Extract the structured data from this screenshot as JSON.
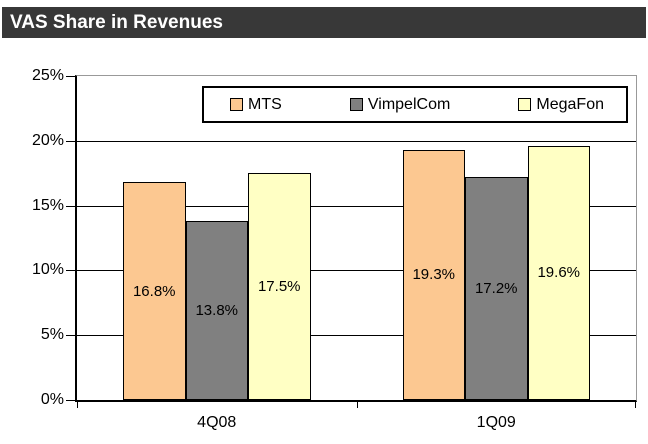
{
  "title": "VAS Share in Revenues",
  "colors": {
    "title_bar_bg": "#383838",
    "title_text": "#FFFFFF",
    "axis": "#000000",
    "gridline": "#000000",
    "plot_border": "#999999",
    "series_mts": "#FCC891",
    "series_vimpelcom": "#808080",
    "series_megafon": "#FFFFC4"
  },
  "chart_data": {
    "type": "bar",
    "title": "VAS Share in Revenues",
    "categories": [
      "4Q08",
      "1Q09"
    ],
    "series": [
      {
        "name": "MTS",
        "color": "#FCC891",
        "values": [
          16.8,
          19.3
        ],
        "labels": [
          "16.8%",
          "19.3%"
        ]
      },
      {
        "name": "VimpelCom",
        "color": "#808080",
        "values": [
          13.8,
          17.2
        ],
        "labels": [
          "13.8%",
          "17.2%"
        ]
      },
      {
        "name": "MegaFon",
        "color": "#FFFFC4",
        "values": [
          17.5,
          19.6
        ],
        "labels": [
          "17.5%",
          "19.6%"
        ]
      }
    ],
    "xlabel": "",
    "ylabel": "",
    "ylim": [
      0,
      25
    ],
    "ytick_step": 5,
    "ytick_labels": [
      "0%",
      "5%",
      "10%",
      "15%",
      "20%",
      "25%"
    ],
    "grid": true,
    "legend_position": "top",
    "data_labels": "centered-inside-bars"
  }
}
